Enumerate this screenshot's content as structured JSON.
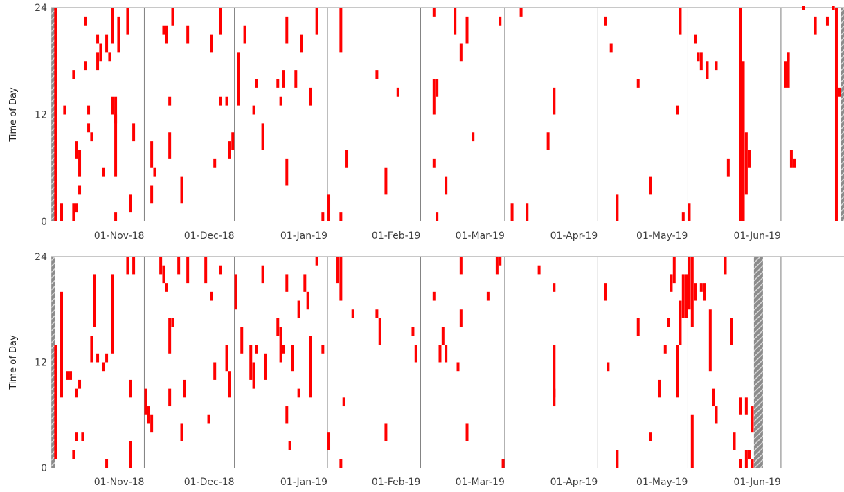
{
  "chart_data": [
    {
      "type": "scatter",
      "panel": "top",
      "ylabel": "Time of Day",
      "ylim": [
        0,
        24
      ],
      "yticks": [
        "0",
        "12",
        "24"
      ],
      "xlim": [
        "2018-10-01",
        "2019-06-22"
      ],
      "xticks": [
        "01-Nov-18",
        "01-Dec-18",
        "01-Jan-19",
        "01-Feb-19",
        "01-Mar-19",
        "01-Apr-19",
        "01-May-19",
        "01-Jun-19"
      ],
      "month_lines": [
        "2018-11-01",
        "2018-12-01",
        "2019-01-01",
        "2019-02-01",
        "2019-03-01",
        "2019-04-01",
        "2019-05-01",
        "2019-06-01"
      ],
      "no_data_ranges": [
        [
          "2018-10-01",
          "2018-10-02"
        ],
        [
          "2019-06-21",
          "2019-06-22"
        ]
      ],
      "event_color": "#ff0000",
      "events": [
        [
          "2018-10-02",
          0,
          24
        ],
        [
          "2018-10-04",
          0,
          2
        ],
        [
          "2018-10-08",
          0,
          2
        ],
        [
          "2018-10-08",
          16,
          17
        ],
        [
          "2018-10-09",
          7,
          9
        ],
        [
          "2018-10-09",
          1,
          2
        ],
        [
          "2018-10-10",
          3,
          4
        ],
        [
          "2018-10-10",
          5,
          8
        ],
        [
          "2018-10-05",
          12,
          13
        ],
        [
          "2018-10-12",
          17,
          18
        ],
        [
          "2018-10-12",
          22,
          23
        ],
        [
          "2018-10-13",
          12,
          13
        ],
        [
          "2018-10-13",
          10,
          11
        ],
        [
          "2018-10-14",
          9,
          10
        ],
        [
          "2018-10-16",
          20,
          21
        ],
        [
          "2018-10-16",
          17,
          19
        ],
        [
          "2018-10-17",
          18,
          20
        ],
        [
          "2018-10-18",
          5,
          6
        ],
        [
          "2018-10-19",
          20,
          21
        ],
        [
          "2018-10-19",
          19,
          20
        ],
        [
          "2018-10-20",
          18,
          19
        ],
        [
          "2018-10-21",
          12,
          14
        ],
        [
          "2018-10-21",
          20,
          24
        ],
        [
          "2018-10-22",
          11,
          14
        ],
        [
          "2018-10-22",
          5,
          12
        ],
        [
          "2018-10-22",
          0,
          1
        ],
        [
          "2018-10-23",
          19,
          23
        ],
        [
          "2018-10-26",
          21,
          24
        ],
        [
          "2018-10-27",
          1,
          3
        ],
        [
          "2018-10-28",
          9,
          11
        ],
        [
          "2018-11-03",
          6,
          9
        ],
        [
          "2018-11-03",
          2,
          4
        ],
        [
          "2018-11-04",
          5,
          6
        ],
        [
          "2018-11-07",
          21,
          22
        ],
        [
          "2018-11-08",
          20,
          22
        ],
        [
          "2018-11-09",
          13,
          14
        ],
        [
          "2018-11-09",
          7,
          10
        ],
        [
          "2018-11-10",
          22,
          24
        ],
        [
          "2018-11-13",
          2,
          5
        ],
        [
          "2018-11-15",
          20,
          22
        ],
        [
          "2018-11-23",
          19,
          21
        ],
        [
          "2018-11-24",
          6,
          7
        ],
        [
          "2018-11-26",
          13,
          14
        ],
        [
          "2018-11-26",
          21,
          24
        ],
        [
          "2018-11-28",
          13,
          14
        ],
        [
          "2018-11-29",
          7,
          9
        ],
        [
          "2018-11-30",
          8,
          10
        ],
        [
          "2018-12-02",
          13,
          19
        ],
        [
          "2018-12-04",
          20,
          22
        ],
        [
          "2018-12-07",
          12,
          13
        ],
        [
          "2018-12-08",
          15,
          16
        ],
        [
          "2018-12-10",
          8,
          11
        ],
        [
          "2018-12-15",
          15,
          16
        ],
        [
          "2018-12-16",
          13,
          14
        ],
        [
          "2018-12-17",
          15,
          17
        ],
        [
          "2018-12-18",
          4,
          7
        ],
        [
          "2018-12-18",
          20,
          23
        ],
        [
          "2018-12-21",
          15,
          17
        ],
        [
          "2018-12-23",
          19,
          21
        ],
        [
          "2018-12-26",
          13,
          15
        ],
        [
          "2018-12-28",
          21,
          24
        ],
        [
          "2018-12-30",
          0,
          1
        ],
        [
          "2019-01-01",
          0,
          3
        ],
        [
          "2019-01-05",
          19,
          24
        ],
        [
          "2019-01-05",
          0,
          1
        ],
        [
          "2019-01-07",
          6,
          8
        ],
        [
          "2019-01-17",
          16,
          17
        ],
        [
          "2019-01-20",
          3,
          6
        ],
        [
          "2019-01-24",
          14,
          15
        ],
        [
          "2019-02-05",
          23,
          24
        ],
        [
          "2019-02-05",
          12,
          16
        ],
        [
          "2019-02-05",
          6,
          7
        ],
        [
          "2019-02-06",
          0,
          1
        ],
        [
          "2019-02-06",
          14,
          16
        ],
        [
          "2019-02-09",
          3,
          5
        ],
        [
          "2019-02-12",
          21,
          24
        ],
        [
          "2019-02-14",
          18,
          20
        ],
        [
          "2019-02-16",
          20,
          23
        ],
        [
          "2019-02-18",
          9,
          10
        ],
        [
          "2019-02-27",
          22,
          23
        ],
        [
          "2019-03-03",
          0,
          2
        ],
        [
          "2019-03-06",
          23,
          24
        ],
        [
          "2019-03-08",
          0,
          2
        ],
        [
          "2019-03-15",
          8,
          10
        ],
        [
          "2019-03-17",
          12,
          15
        ],
        [
          "2019-04-03",
          22,
          23
        ],
        [
          "2019-04-05",
          19,
          20
        ],
        [
          "2019-04-07",
          0,
          3
        ],
        [
          "2019-04-14",
          15,
          16
        ],
        [
          "2019-04-18",
          3,
          5
        ],
        [
          "2019-04-27",
          12,
          13
        ],
        [
          "2019-04-28",
          21,
          24
        ],
        [
          "2019-04-29",
          0,
          1
        ],
        [
          "2019-05-01",
          0,
          2
        ],
        [
          "2019-05-03",
          20,
          21
        ],
        [
          "2019-05-04",
          18,
          19
        ],
        [
          "2019-05-05",
          17,
          19
        ],
        [
          "2019-05-07",
          16,
          18
        ],
        [
          "2019-05-10",
          17,
          18
        ],
        [
          "2019-05-14",
          5,
          7
        ],
        [
          "2019-05-18",
          0,
          24
        ],
        [
          "2019-05-19",
          0,
          18
        ],
        [
          "2019-05-20",
          3,
          10
        ],
        [
          "2019-05-21",
          6,
          8
        ],
        [
          "2019-06-02",
          15,
          18
        ],
        [
          "2019-06-03",
          18,
          19
        ],
        [
          "2019-06-03",
          15,
          19
        ],
        [
          "2019-06-04",
          6,
          8
        ],
        [
          "2019-06-05",
          6,
          7
        ],
        [
          "2019-06-08",
          24,
          24
        ],
        [
          "2019-06-12",
          21,
          23
        ],
        [
          "2019-06-16",
          22,
          23
        ],
        [
          "2019-06-18",
          24,
          24
        ],
        [
          "2019-06-19",
          0,
          24
        ],
        [
          "2019-06-20",
          14,
          15
        ]
      ]
    },
    {
      "type": "scatter",
      "panel": "bottom",
      "ylabel": "Time of Day",
      "ylim": [
        0,
        24
      ],
      "yticks": [
        "0",
        "12",
        "24"
      ],
      "xlim": [
        "2018-10-01",
        "2019-06-22"
      ],
      "xticks": [
        "01-Nov-18",
        "01-Dec-18",
        "01-Jan-19",
        "01-Feb-19",
        "01-Mar-19",
        "01-Apr-19",
        "01-May-19",
        "01-Jun-19"
      ],
      "month_lines": [
        "2018-11-01",
        "2018-12-01",
        "2019-01-01",
        "2019-02-01",
        "2019-03-01",
        "2019-04-01",
        "2019-05-01",
        "2019-06-01"
      ],
      "no_data_ranges": [
        [
          "2018-10-01",
          "2018-10-02"
        ],
        [
          "2019-05-23",
          "2019-05-26"
        ]
      ],
      "event_color": "#ff0000",
      "events": [
        [
          "2018-10-02",
          1,
          14
        ],
        [
          "2018-10-04",
          8,
          20
        ],
        [
          "2018-10-06",
          10,
          11
        ],
        [
          "2018-10-07",
          10,
          11
        ],
        [
          "2018-10-08",
          1,
          2
        ],
        [
          "2018-10-09",
          8,
          9
        ],
        [
          "2018-10-09",
          3,
          4
        ],
        [
          "2018-10-10",
          9,
          10
        ],
        [
          "2018-10-11",
          3,
          4
        ],
        [
          "2018-10-14",
          12,
          15
        ],
        [
          "2018-10-15",
          16,
          22
        ],
        [
          "2018-10-16",
          12,
          13
        ],
        [
          "2018-10-18",
          11,
          12
        ],
        [
          "2018-10-19",
          0,
          1
        ],
        [
          "2018-10-19",
          12,
          13
        ],
        [
          "2018-10-21",
          13,
          22
        ],
        [
          "2018-10-26",
          22,
          24
        ],
        [
          "2018-10-27",
          0,
          3
        ],
        [
          "2018-10-27",
          8,
          10
        ],
        [
          "2018-10-28",
          22,
          24
        ],
        [
          "2018-11-01",
          6,
          9
        ],
        [
          "2018-11-02",
          5,
          7
        ],
        [
          "2018-11-03",
          4,
          6
        ],
        [
          "2018-11-06",
          22,
          24
        ],
        [
          "2018-11-07",
          21,
          23
        ],
        [
          "2018-11-08",
          20,
          21
        ],
        [
          "2018-11-09",
          13,
          17
        ],
        [
          "2018-11-09",
          7,
          9
        ],
        [
          "2018-11-10",
          16,
          17
        ],
        [
          "2018-11-12",
          22,
          24
        ],
        [
          "2018-11-13",
          3,
          5
        ],
        [
          "2018-11-14",
          8,
          10
        ],
        [
          "2018-11-15",
          21,
          24
        ],
        [
          "2018-11-21",
          21,
          24
        ],
        [
          "2018-11-22",
          5,
          6
        ],
        [
          "2018-11-23",
          19,
          20
        ],
        [
          "2018-11-24",
          10,
          12
        ],
        [
          "2018-11-26",
          22,
          23
        ],
        [
          "2018-11-28",
          11,
          14
        ],
        [
          "2018-11-29",
          8,
          11
        ],
        [
          "2018-12-01",
          18,
          22
        ],
        [
          "2018-12-03",
          13,
          16
        ],
        [
          "2018-12-06",
          10,
          14
        ],
        [
          "2018-12-07",
          9,
          12
        ],
        [
          "2018-12-08",
          13,
          14
        ],
        [
          "2018-12-10",
          21,
          23
        ],
        [
          "2018-12-11",
          10,
          13
        ],
        [
          "2018-12-15",
          15,
          17
        ],
        [
          "2018-12-16",
          12,
          16
        ],
        [
          "2018-12-17",
          13,
          14
        ],
        [
          "2018-12-18",
          5,
          7
        ],
        [
          "2018-12-18",
          20,
          22
        ],
        [
          "2018-12-19",
          2,
          3
        ],
        [
          "2018-12-20",
          11,
          14
        ],
        [
          "2018-12-22",
          8,
          9
        ],
        [
          "2018-12-22",
          17,
          19
        ],
        [
          "2018-12-24",
          20,
          22
        ],
        [
          "2018-12-25",
          18,
          20
        ],
        [
          "2018-12-26",
          8,
          15
        ],
        [
          "2018-12-28",
          23,
          24
        ],
        [
          "2018-12-30",
          13,
          14
        ],
        [
          "2019-01-01",
          2,
          4
        ],
        [
          "2019-01-04",
          21,
          24
        ],
        [
          "2019-01-05",
          19,
          24
        ],
        [
          "2019-01-05",
          0,
          1
        ],
        [
          "2019-01-06",
          7,
          8
        ],
        [
          "2019-01-09",
          17,
          18
        ],
        [
          "2019-01-17",
          17,
          18
        ],
        [
          "2019-01-18",
          14,
          17
        ],
        [
          "2019-01-20",
          3,
          5
        ],
        [
          "2019-01-29",
          15,
          16
        ],
        [
          "2019-01-30",
          12,
          14
        ],
        [
          "2019-02-05",
          19,
          20
        ],
        [
          "2019-02-07",
          12,
          14
        ],
        [
          "2019-02-08",
          14,
          16
        ],
        [
          "2019-02-09",
          12,
          14
        ],
        [
          "2019-02-13",
          11,
          12
        ],
        [
          "2019-02-14",
          16,
          18
        ],
        [
          "2019-02-14",
          22,
          24
        ],
        [
          "2019-02-16",
          3,
          5
        ],
        [
          "2019-02-23",
          19,
          20
        ],
        [
          "2019-02-26",
          22,
          24
        ],
        [
          "2019-02-27",
          23,
          24
        ],
        [
          "2019-02-28",
          0,
          1
        ],
        [
          "2019-03-12",
          22,
          23
        ],
        [
          "2019-03-17",
          20,
          21
        ],
        [
          "2019-03-17",
          8,
          14
        ],
        [
          "2019-03-17",
          7,
          9
        ],
        [
          "2019-04-03",
          19,
          21
        ],
        [
          "2019-04-04",
          11,
          12
        ],
        [
          "2019-04-07",
          0,
          2
        ],
        [
          "2019-04-14",
          15,
          17
        ],
        [
          "2019-04-18",
          3,
          4
        ],
        [
          "2019-04-21",
          8,
          10
        ],
        [
          "2019-04-23",
          13,
          14
        ],
        [
          "2019-04-24",
          16,
          17
        ],
        [
          "2019-04-25",
          20,
          22
        ],
        [
          "2019-04-26",
          21,
          24
        ],
        [
          "2019-04-27",
          8,
          14
        ],
        [
          "2019-04-28",
          14,
          19
        ],
        [
          "2019-04-29",
          17,
          22
        ],
        [
          "2019-04-30",
          17,
          22
        ],
        [
          "2019-05-01",
          18,
          24
        ],
        [
          "2019-05-02",
          0,
          6
        ],
        [
          "2019-05-02",
          16,
          24
        ],
        [
          "2019-05-03",
          19,
          21
        ],
        [
          "2019-05-05",
          20,
          21
        ],
        [
          "2019-05-06",
          19,
          21
        ],
        [
          "2019-05-08",
          17,
          18
        ],
        [
          "2019-05-08",
          11,
          17
        ],
        [
          "2019-05-09",
          7,
          9
        ],
        [
          "2019-05-10",
          5,
          7
        ],
        [
          "2019-05-13",
          22,
          24
        ],
        [
          "2019-05-15",
          14,
          17
        ],
        [
          "2019-05-16",
          2,
          4
        ],
        [
          "2019-05-18",
          0,
          1
        ],
        [
          "2019-05-18",
          6,
          8
        ],
        [
          "2019-05-20",
          6,
          8
        ],
        [
          "2019-05-20",
          0,
          2
        ],
        [
          "2019-05-21",
          1,
          2
        ],
        [
          "2019-05-22",
          4,
          7
        ],
        [
          "2019-05-22",
          0,
          1
        ]
      ]
    }
  ]
}
